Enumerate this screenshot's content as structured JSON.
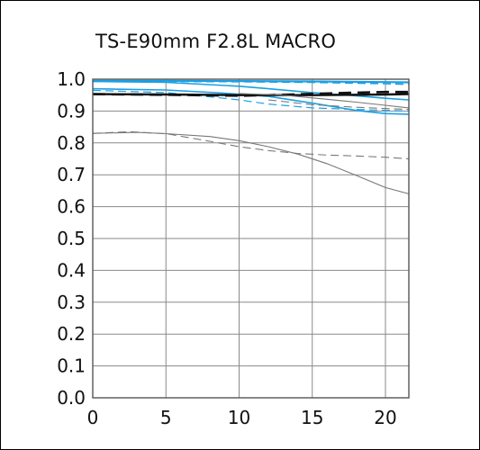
{
  "chart_data": {
    "type": "line",
    "title": "TS-E90mm F2.8L MACRO",
    "xlabel": "",
    "ylabel": "",
    "xlim": [
      0,
      21.6
    ],
    "ylim": [
      0.0,
      1.0
    ],
    "grid": true,
    "x_ticks": [
      "0",
      "5",
      "10",
      "15",
      "20"
    ],
    "y_ticks": [
      "0.0",
      "0.1",
      "0.2",
      "0.3",
      "0.4",
      "0.5",
      "0.6",
      "0.7",
      "0.8",
      "0.9",
      "1.0"
    ],
    "series": [
      {
        "color": "#1aa0e6",
        "dash": "solid",
        "width": 2.2,
        "x": [
          0,
          5,
          10,
          15,
          20,
          21.6
        ],
        "y": [
          0.995,
          0.995,
          0.994,
          0.993,
          0.991,
          0.99
        ]
      },
      {
        "color": "#1aa0e6",
        "dash": "dashed",
        "width": 1.6,
        "x": [
          0,
          5,
          10,
          15,
          20,
          21.6
        ],
        "y": [
          0.993,
          0.993,
          0.992,
          0.99,
          0.986,
          0.984
        ]
      },
      {
        "color": "#1aa0e6",
        "dash": "solid",
        "width": 1.6,
        "x": [
          0,
          5,
          10,
          12,
          15,
          18,
          20,
          21.6
        ],
        "y": [
          0.993,
          0.99,
          0.978,
          0.97,
          0.958,
          0.948,
          0.94,
          0.935
        ]
      },
      {
        "color": "#1aa0e6",
        "dash": "solid",
        "width": 1.6,
        "x": [
          0,
          5,
          9,
          12,
          15,
          18,
          20,
          21.6
        ],
        "y": [
          0.97,
          0.966,
          0.956,
          0.946,
          0.925,
          0.902,
          0.892,
          0.89
        ]
      },
      {
        "color": "#1aa0e6",
        "dash": "dashed",
        "width": 1.2,
        "x": [
          0,
          5,
          8,
          10,
          12,
          15,
          18,
          21.6
        ],
        "y": [
          0.965,
          0.958,
          0.945,
          0.935,
          0.922,
          0.91,
          0.905,
          0.9
        ]
      },
      {
        "color": "#111111",
        "dash": "solid",
        "width": 2.4,
        "x": [
          0,
          5,
          10,
          15,
          20,
          21.6
        ],
        "y": [
          0.953,
          0.952,
          0.95,
          0.95,
          0.952,
          0.953
        ]
      },
      {
        "color": "#111111",
        "dash": "dashed",
        "width": 2.6,
        "x": [
          0,
          5,
          10,
          12,
          15,
          18,
          20,
          21.6
        ],
        "y": [
          0.953,
          0.951,
          0.948,
          0.95,
          0.954,
          0.958,
          0.96,
          0.96
        ]
      },
      {
        "color": "#777777",
        "dash": "solid",
        "width": 1.1,
        "x": [
          0,
          3,
          5,
          8,
          10,
          12,
          14,
          16,
          18,
          20,
          21.6
        ],
        "y": [
          0.83,
          0.833,
          0.829,
          0.82,
          0.807,
          0.788,
          0.765,
          0.735,
          0.698,
          0.66,
          0.64
        ]
      },
      {
        "color": "#777777",
        "dash": "dashed",
        "width": 1.1,
        "x": [
          0,
          2.5,
          5,
          8,
          10,
          12,
          14,
          16,
          18,
          20,
          21.6
        ],
        "y": [
          0.83,
          0.835,
          0.829,
          0.805,
          0.788,
          0.776,
          0.767,
          0.762,
          0.759,
          0.755,
          0.75
        ]
      },
      {
        "color": "#777777",
        "dash": "solid",
        "width": 1.1,
        "x": [
          10,
          13,
          16,
          18,
          20,
          21.6
        ],
        "y": [
          0.955,
          0.95,
          0.937,
          0.928,
          0.918,
          0.91
        ]
      },
      {
        "color": "#777777",
        "dash": "dashed",
        "width": 1.1,
        "x": [
          12,
          15,
          18,
          20,
          21.6
        ],
        "y": [
          0.935,
          0.92,
          0.912,
          0.908,
          0.905
        ]
      }
    ]
  }
}
